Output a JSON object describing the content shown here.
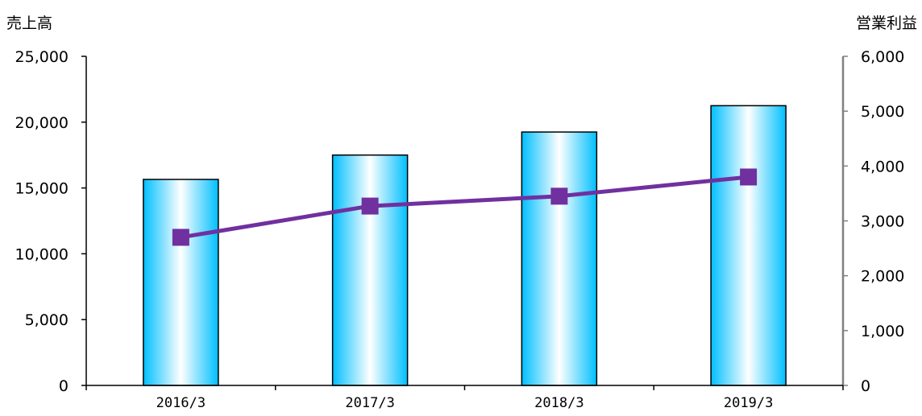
{
  "chart_data": {
    "type": "bar+line",
    "categories": [
      "2016/3",
      "2017/3",
      "2018/3",
      "2019/3"
    ],
    "series": [
      {
        "name": "売上高",
        "type": "bar",
        "axis": "left",
        "values": [
          15650,
          17500,
          19250,
          21250
        ]
      },
      {
        "name": "営業利益",
        "type": "line",
        "axis": "right",
        "values": [
          2700,
          3270,
          3450,
          3800
        ]
      }
    ],
    "y_left": {
      "label": "売上高",
      "min": 0,
      "max": 25000,
      "step": 5000,
      "tick_labels": [
        "0",
        "5,000",
        "10,000",
        "15,000",
        "20,000",
        "25,000"
      ]
    },
    "y_right": {
      "label": "営業利益",
      "min": 0,
      "max": 6000,
      "step": 1000,
      "tick_labels": [
        "0",
        "1,000",
        "2,000",
        "3,000",
        "4,000",
        "5,000",
        "6,000"
      ]
    },
    "grid": false,
    "legend": "none",
    "colors": {
      "bar_edge": "#00BFFF",
      "bar_center": "#FFFFFF",
      "bar_border": "#000000",
      "line": "#7030A0",
      "marker": "#7030A0",
      "axis": "#000000",
      "right_axis": "#808080"
    }
  }
}
